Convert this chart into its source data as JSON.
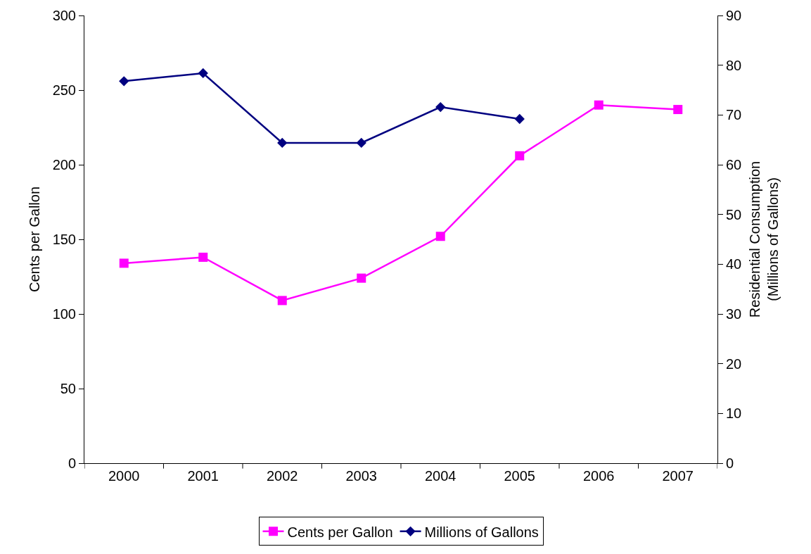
{
  "chart_data": {
    "type": "line",
    "ylabel": "Cents per Gallon",
    "y2label": "Residential Consumption\n(Millions of Gallons)",
    "categories": [
      "2000",
      "2001",
      "2002",
      "2003",
      "2004",
      "2005",
      "2006",
      "2007"
    ],
    "series": [
      {
        "name": "Cents per Gallon",
        "color": "#ff00ff",
        "marker": "square",
        "values": [
          134,
          138,
          109,
          124,
          152,
          206,
          240,
          237
        ]
      },
      {
        "name": "Millions of Gallons",
        "color": "#000080",
        "marker": "diamond",
        "axis": "y2",
        "values": [
          76.8,
          78.4,
          64.4,
          64.4,
          71.6,
          69.2,
          null,
          null
        ]
      }
    ],
    "ylim": [
      0,
      300
    ],
    "yticks": [
      0,
      50,
      100,
      150,
      200,
      250,
      300
    ],
    "y2lim": [
      0,
      90
    ],
    "y2ticks": [
      0,
      10,
      20,
      30,
      40,
      50,
      60,
      70,
      80,
      90
    ],
    "legend": "bottom",
    "line_style": "solid"
  }
}
